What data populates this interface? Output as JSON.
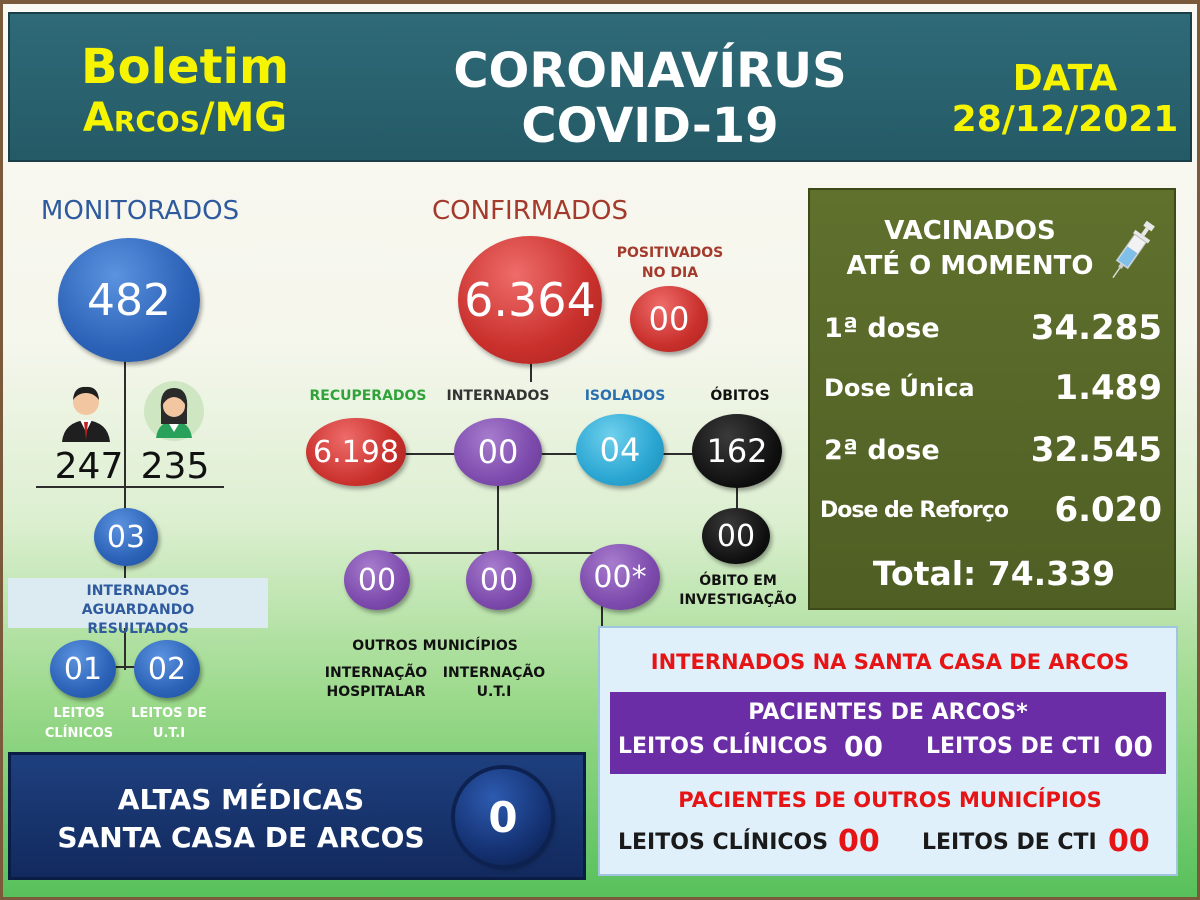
{
  "header": {
    "boletim": "Boletim",
    "city": "Arcos/MG",
    "title_line1": "CORONAVÍRUS",
    "title_line2": "COVID-19",
    "data_label": "DATA",
    "date": "28/12/2021"
  },
  "monitorados": {
    "label": "MONITORADOS",
    "total": "482",
    "male": "247",
    "female": "235",
    "internados_aguardando": "03",
    "internados_aguardando_label": "INTERNADOS AGUARDANDO RESULTADOS",
    "leitos_clinicos": "01",
    "leitos_clinicos_label": "LEITOS CLÍNICOS",
    "leitos_uti": "02",
    "leitos_uti_label": "LEITOS DE U.T.I"
  },
  "confirmados": {
    "label": "CONFIRMADOS",
    "total": "6.364",
    "positivados_label": "POSITIVADOS NO DIA",
    "positivados": "00",
    "recuperados_label": "RECUPERADOS",
    "recuperados": "6.198",
    "internados_label": "INTERNADOS",
    "internados": "00",
    "isolados_label": "ISOLADOS",
    "isolados": "04",
    "obitos_label": "ÓBITOS",
    "obitos": "162",
    "obito_investigacao": "00",
    "obito_investigacao_label": "ÓBITO EM INVESTIGAÇÃO",
    "sub_hospitalar": "00",
    "sub_uti": "00",
    "sub_outros": "00*",
    "outros_municipios_label": "OUTROS MUNICÍPIOS",
    "internacao_hospitalar_label": "INTERNAÇÃO HOSPITALAR",
    "internacao_uti_label": "INTERNAÇÃO U.T.I"
  },
  "vacinados": {
    "title_line1": "VACINADOS",
    "title_line2": "ATÉ O MOMENTO",
    "rows": [
      {
        "label": "1ª dose",
        "value": "34.285"
      },
      {
        "label": "Dose Única",
        "value": "1.489"
      },
      {
        "label": "2ª dose",
        "value": "32.545"
      },
      {
        "label": "Dose de Reforço",
        "value": "6.020"
      }
    ],
    "total": "Total: 74.339"
  },
  "altas": {
    "line1": "ALTAS MÉDICAS",
    "line2": "SANTA CASA DE ARCOS",
    "value": "0"
  },
  "santa_casa": {
    "title": "INTERNADOS NA SANTA CASA DE ARCOS",
    "arcos_title": "PACIENTES DE ARCOS*",
    "arcos_clinicos_label": "LEITOS CLÍNICOS",
    "arcos_clinicos": "00",
    "arcos_cti_label": "LEITOS DE CTI",
    "arcos_cti": "00",
    "outros_title": "PACIENTES DE OUTROS MUNICÍPIOS",
    "outros_clinicos_label": "LEITOS CLÍNICOS",
    "outros_clinicos": "00",
    "outros_cti_label": "LEITOS DE CTI",
    "outros_cti": "00"
  },
  "colors": {
    "header_bg": "#2f6a78",
    "yellow": "#f6f400",
    "vac_bg": "#60702d",
    "altas_bg": "#1e3f7e",
    "santa_bg": "#dff0fb",
    "santa_purple": "#6b2da6",
    "red_text": "#e61414"
  },
  "icons": [
    "male-avatar-icon",
    "female-avatar-icon",
    "syringe-icon"
  ]
}
